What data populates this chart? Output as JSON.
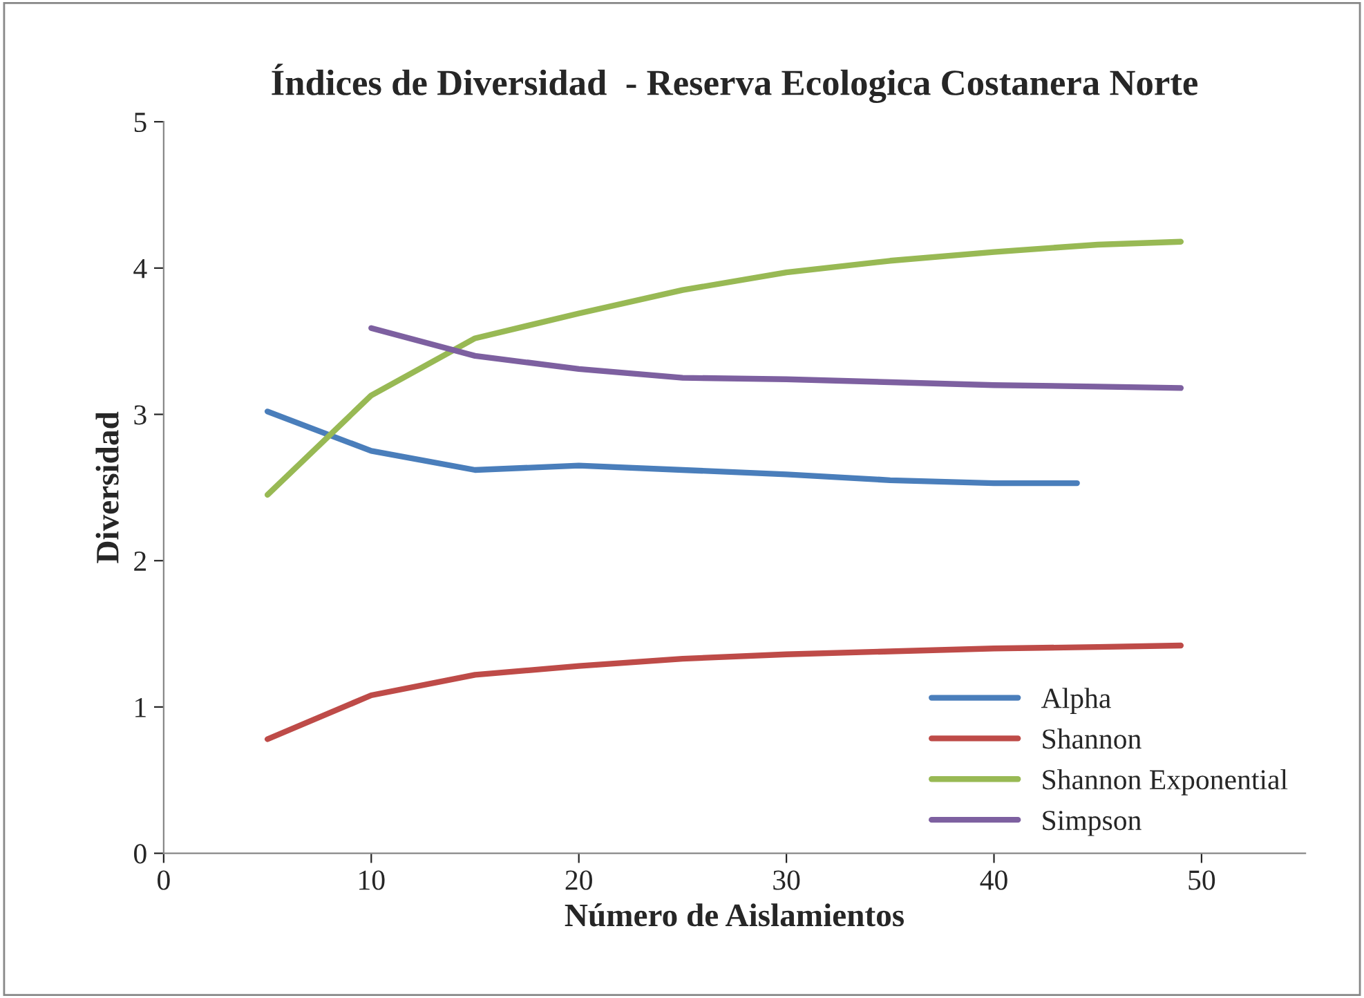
{
  "chart_data": {
    "type": "line",
    "title": "Índices de Diversidad  - Reserva Ecologica Costanera Norte",
    "xlabel": "Número de Aislamientos",
    "ylabel": "Diversidad",
    "xlim": [
      0,
      55
    ],
    "xticks": [
      0,
      10,
      20,
      30,
      40,
      50
    ],
    "ylim": [
      0,
      5
    ],
    "yticks": [
      0,
      1,
      2,
      3,
      4,
      5
    ],
    "grid": false,
    "legend": "bottom right",
    "marker": "none",
    "line_style": "solid",
    "series": [
      {
        "name": "Alpha",
        "color": "#4a7ebb",
        "x": [
          5,
          10,
          15,
          20,
          25,
          30,
          35,
          40,
          44
        ],
        "values": [
          3.02,
          2.75,
          2.62,
          2.65,
          2.62,
          2.59,
          2.55,
          2.53,
          2.53
        ]
      },
      {
        "name": "Shannon",
        "color": "#be4b48",
        "x": [
          5,
          10,
          15,
          20,
          25,
          30,
          35,
          40,
          45,
          49
        ],
        "values": [
          0.78,
          1.08,
          1.22,
          1.28,
          1.33,
          1.36,
          1.38,
          1.4,
          1.41,
          1.42
        ]
      },
      {
        "name": "Shannon Exponential",
        "color": "#98b954",
        "x": [
          5,
          10,
          15,
          20,
          25,
          30,
          35,
          40,
          45,
          49
        ],
        "values": [
          2.45,
          3.13,
          3.52,
          3.69,
          3.85,
          3.97,
          4.05,
          4.11,
          4.16,
          4.18
        ]
      },
      {
        "name": "Simpson",
        "color": "#7d60a0",
        "x": [
          10,
          15,
          20,
          25,
          30,
          35,
          40,
          45,
          49
        ],
        "values": [
          3.59,
          3.4,
          3.31,
          3.25,
          3.24,
          3.22,
          3.2,
          3.19,
          3.18
        ]
      }
    ]
  }
}
